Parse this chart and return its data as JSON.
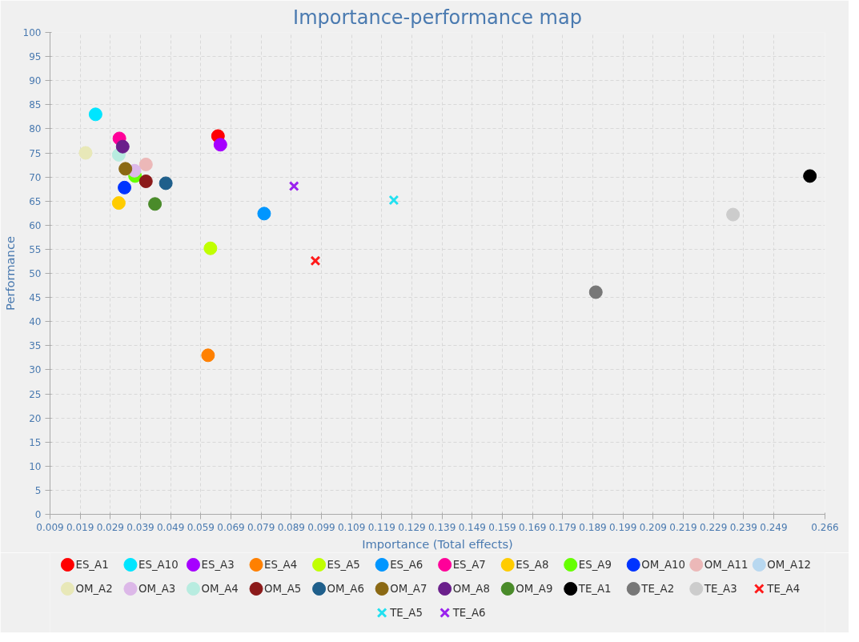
{
  "chart_data": {
    "type": "scatter",
    "title": "Importance-performance map",
    "xlabel": "Importance (Total effects)",
    "ylabel": "Performance",
    "xlim": [
      0.009,
      0.266
    ],
    "ylim": [
      0,
      100
    ],
    "xticks": [
      0.009,
      0.019,
      0.029,
      0.039,
      0.049,
      0.059,
      0.069,
      0.079,
      0.089,
      0.099,
      0.109,
      0.119,
      0.129,
      0.139,
      0.149,
      0.159,
      0.169,
      0.179,
      0.189,
      0.199,
      0.209,
      0.219,
      0.229,
      0.239,
      0.249,
      0.266
    ],
    "yticks": [
      0,
      5,
      10,
      15,
      20,
      25,
      30,
      35,
      40,
      45,
      50,
      55,
      60,
      65,
      70,
      75,
      80,
      85,
      90,
      95,
      100
    ],
    "grid": true,
    "legend": "bottom",
    "marker": "circle",
    "series": [
      {
        "name": "ES_A1",
        "color": "#ff0000",
        "x": [
          0.0647
        ],
        "values": [
          78.5
        ]
      },
      {
        "name": "ES_A10",
        "color": "#00e5ff",
        "x": [
          0.0241
        ],
        "values": [
          83.0
        ]
      },
      {
        "name": "ES_A3",
        "color": "#a600ff",
        "x": [
          0.0655
        ],
        "values": [
          76.7
        ]
      },
      {
        "name": "ES_A4",
        "color": "#ff8000",
        "x": [
          0.0614
        ],
        "values": [
          33.0
        ]
      },
      {
        "name": "ES_A5",
        "color": "#c0ff00",
        "x": [
          0.0622
        ],
        "values": [
          55.2
        ]
      },
      {
        "name": "ES_A6",
        "color": "#0096ff",
        "x": [
          0.08
        ],
        "values": [
          62.4
        ]
      },
      {
        "name": "ES_A7",
        "color": "#ff0099",
        "x": [
          0.032
        ],
        "values": [
          78.0
        ]
      },
      {
        "name": "ES_A8",
        "color": "#ffcc00",
        "x": [
          0.0318
        ],
        "values": [
          64.6
        ]
      },
      {
        "name": "ES_A9",
        "color": "#66ff00",
        "x": [
          0.0372
        ],
        "values": [
          70.2
        ]
      },
      {
        "name": "OM_A10",
        "color": "#0033ff",
        "x": [
          0.0337
        ],
        "values": [
          67.8
        ]
      },
      {
        "name": "OM_A11",
        "color": "#ecb8b8",
        "x": [
          0.0408
        ],
        "values": [
          72.6
        ]
      },
      {
        "name": "OM_A12",
        "color": "#b8d8f0",
        "x": [
          null
        ],
        "values": [
          null
        ]
      },
      {
        "name": "OM_A2",
        "color": "#e8e8b8",
        "x": [
          0.0208
        ],
        "values": [
          75.0
        ]
      },
      {
        "name": "OM_A3",
        "color": "#dcb8e8",
        "x": [
          0.037
        ],
        "values": [
          71.3
        ]
      },
      {
        "name": "OM_A4",
        "color": "#b8ece0",
        "x": [
          0.0318
        ],
        "values": [
          74.6
        ]
      },
      {
        "name": "OM_A5",
        "color": "#8b1a1a",
        "x": [
          0.0408
        ],
        "values": [
          69.1
        ]
      },
      {
        "name": "OM_A6",
        "color": "#1f5f8b",
        "x": [
          0.0474
        ],
        "values": [
          68.7
        ]
      },
      {
        "name": "OM_A7",
        "color": "#8b6914",
        "x": [
          0.034
        ],
        "values": [
          71.7
        ]
      },
      {
        "name": "OM_A8",
        "color": "#6a1f8b",
        "x": [
          0.0331
        ],
        "values": [
          76.3
        ]
      },
      {
        "name": "OM_A9",
        "color": "#4a8b2a",
        "x": [
          0.0438
        ],
        "values": [
          64.4
        ]
      },
      {
        "name": "TE_A1",
        "color": "#000000",
        "x": [
          0.261
        ],
        "values": [
          70.2
        ]
      },
      {
        "name": "TE_A2",
        "color": "#777777",
        "x": [
          0.19
        ],
        "values": [
          46.1
        ]
      },
      {
        "name": "TE_A3",
        "color": "#cccccc",
        "x": [
          0.2355
        ],
        "values": [
          62.2
        ]
      },
      {
        "name": "TE_A4",
        "color": "#ff1a1a",
        "marker": "cross",
        "x": [
          0.097
        ],
        "values": [
          52.6
        ]
      },
      {
        "name": "TE_A5",
        "color": "#22e0f0",
        "marker": "cross",
        "x": [
          0.123
        ],
        "values": [
          65.2
        ]
      },
      {
        "name": "TE_A6",
        "color": "#9a22ee",
        "marker": "cross",
        "x": [
          0.0899
        ],
        "values": [
          68.1
        ]
      }
    ]
  }
}
